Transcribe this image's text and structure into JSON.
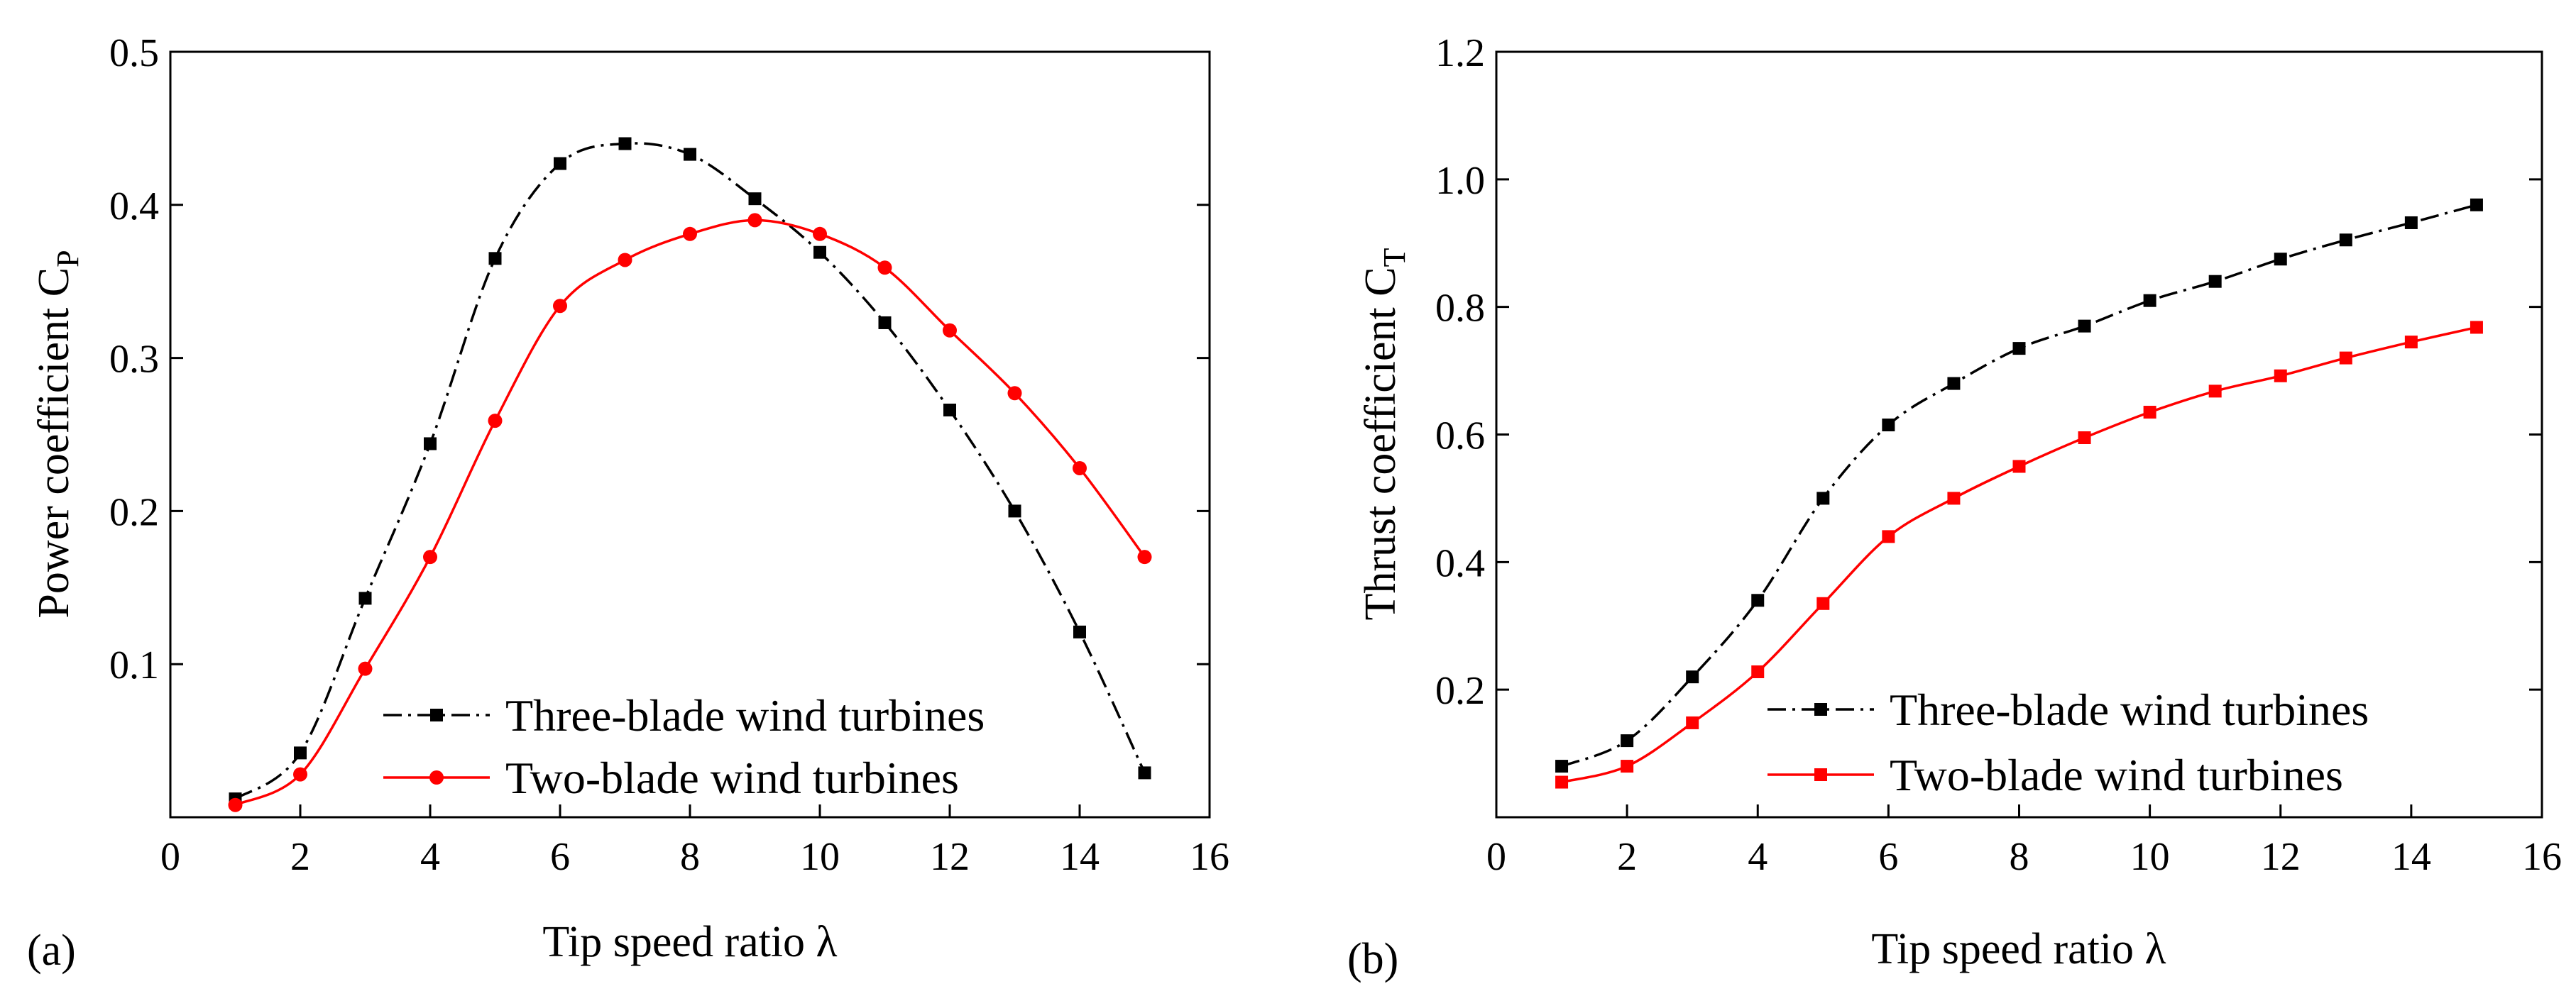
{
  "chart_data": [
    {
      "type": "line",
      "panel_label": "(a)",
      "title": "",
      "xlabel": "Tip speed ratio λ",
      "ylabel_main": "Power coefficient C",
      "ylabel_sub": "P",
      "xlim": [
        0,
        16
      ],
      "ylim": [
        0,
        0.5
      ],
      "xticks": [
        0,
        2,
        4,
        6,
        8,
        10,
        12,
        14,
        16
      ],
      "yticks": [
        0.1,
        0.2,
        0.3,
        0.4,
        0.5
      ],
      "xtick_labels": [
        "0",
        "2",
        "4",
        "6",
        "8",
        "10",
        "12",
        "14",
        "16"
      ],
      "ytick_labels": [
        "0.1",
        "0.2",
        "0.3",
        "0.4",
        "0.5"
      ],
      "legend_position": "bottom-center",
      "series": [
        {
          "name": "Three-blade wind turbines",
          "color": "#000000",
          "line_style": "dash-dot",
          "marker": "square",
          "x": [
            1,
            2,
            3,
            4,
            5,
            6,
            7,
            8,
            9,
            10,
            11,
            12,
            13,
            14,
            15
          ],
          "values": [
            0.012,
            0.042,
            0.143,
            0.244,
            0.365,
            0.427,
            0.44,
            0.433,
            0.404,
            0.369,
            0.323,
            0.266,
            0.2,
            0.121,
            0.029
          ]
        },
        {
          "name": "Two-blade wind turbines",
          "color": "#ff0000",
          "line_style": "solid",
          "marker": "circle",
          "x": [
            1,
            2,
            3,
            4,
            5,
            6,
            7,
            8,
            9,
            10,
            11,
            12,
            13,
            14,
            15
          ],
          "values": [
            0.008,
            0.028,
            0.097,
            0.17,
            0.259,
            0.334,
            0.364,
            0.381,
            0.39,
            0.381,
            0.359,
            0.318,
            0.277,
            0.228,
            0.17
          ]
        }
      ]
    },
    {
      "type": "line",
      "panel_label": "(b)",
      "title": "",
      "xlabel": "Tip speed ratio λ",
      "ylabel_main": "Thrust coefficient C",
      "ylabel_sub": "T",
      "xlim": [
        0,
        16
      ],
      "ylim": [
        0,
        1.2
      ],
      "xticks": [
        0,
        2,
        4,
        6,
        8,
        10,
        12,
        14,
        16
      ],
      "yticks": [
        0.2,
        0.4,
        0.6,
        0.8,
        1.0,
        1.2
      ],
      "xtick_labels": [
        "0",
        "2",
        "4",
        "6",
        "8",
        "10",
        "12",
        "14",
        "16"
      ],
      "ytick_labels": [
        "0.2",
        "0.4",
        "0.6",
        "0.8",
        "1.0",
        "1.2"
      ],
      "legend_position": "bottom-center",
      "series": [
        {
          "name": "Three-blade wind turbines",
          "color": "#000000",
          "line_style": "dash-dot",
          "marker": "square",
          "x": [
            1,
            2,
            3,
            4,
            5,
            6,
            7,
            8,
            9,
            10,
            11,
            12,
            13,
            14,
            15
          ],
          "values": [
            0.08,
            0.12,
            0.22,
            0.34,
            0.5,
            0.615,
            0.68,
            0.735,
            0.77,
            0.81,
            0.84,
            0.875,
            0.905,
            0.932,
            0.96
          ]
        },
        {
          "name": "Two-blade wind turbines",
          "color": "#ff0000",
          "line_style": "solid",
          "marker": "square",
          "x": [
            1,
            2,
            3,
            4,
            5,
            6,
            7,
            8,
            9,
            10,
            11,
            12,
            13,
            14,
            15
          ],
          "values": [
            0.055,
            0.08,
            0.148,
            0.228,
            0.335,
            0.44,
            0.5,
            0.55,
            0.595,
            0.635,
            0.668,
            0.692,
            0.72,
            0.745,
            0.768
          ]
        }
      ]
    }
  ]
}
